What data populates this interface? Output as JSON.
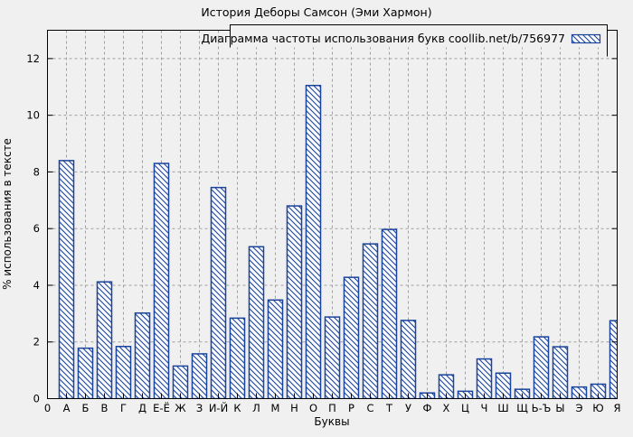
{
  "figure": {
    "background": "#f0f0f0",
    "plot_background": "#f0f0f0"
  },
  "chart_data": {
    "type": "bar",
    "title": "История Деборы Самсон (Эми Хармон)",
    "legend": "Диаграмма частоты использования букв coollib.net/b/756977",
    "legend_position": "top-right-boxed-inside",
    "xlabel": "Буквы",
    "ylabel": "% использования в тексте",
    "origin_label": "0",
    "ylim": [
      0,
      13
    ],
    "yticks": [
      0,
      2,
      4,
      6,
      8,
      10,
      12
    ],
    "grid": true,
    "grid_style": "dashed-gray",
    "bar_style": "diagonal-hatch",
    "bar_color": "#1a449c",
    "bar_fill": "#fcfcfc",
    "grid_color": "#a0a0a0",
    "categories": [
      "А",
      "Б",
      "В",
      "Г",
      "Д",
      "Е-Ё",
      "Ж",
      "З",
      "И-Й",
      "К",
      "Л",
      "М",
      "Н",
      "О",
      "П",
      "Р",
      "С",
      "Т",
      "У",
      "Ф",
      "Х",
      "Ц",
      "Ч",
      "Ш",
      "Щ",
      "Ь-Ъ",
      "Ы",
      "Э",
      "Ю",
      "Я"
    ],
    "values": [
      8.4,
      1.78,
      4.12,
      1.84,
      3.02,
      8.3,
      1.15,
      1.58,
      7.45,
      2.84,
      5.36,
      3.48,
      6.8,
      11.05,
      2.88,
      4.28,
      5.46,
      5.97,
      2.76,
      0.2,
      0.84,
      0.26,
      1.4,
      0.9,
      0.33,
      2.18,
      1.83,
      0.41,
      0.51,
      2.75
    ]
  }
}
